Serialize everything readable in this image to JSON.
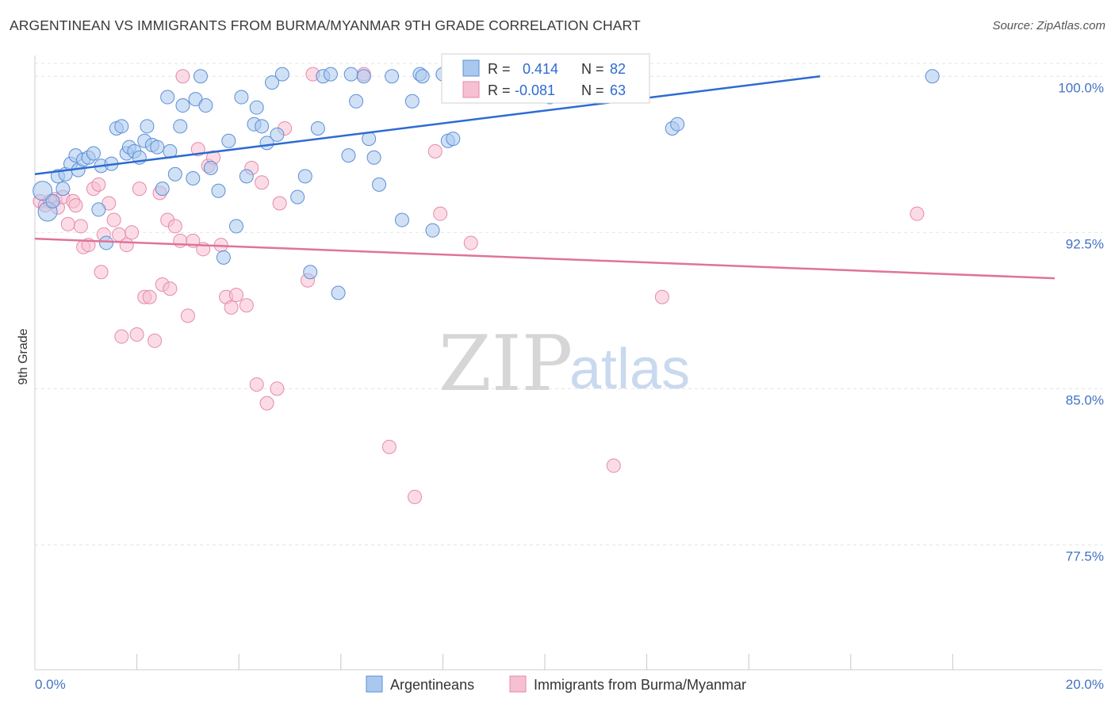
{
  "title": "ARGENTINEAN VS IMMIGRANTS FROM BURMA/MYANMAR 9TH GRADE CORRELATION CHART",
  "source": "Source: ZipAtlas.com",
  "watermark": {
    "zip": "ZIP",
    "atlas": "atlas"
  },
  "colors": {
    "blue_fill": "#a9c8ef",
    "blue_stroke": "#5b8fd6",
    "blue_line": "#2e6bd1",
    "pink_fill": "#f7bfd2",
    "pink_stroke": "#e68aa9",
    "pink_line": "#e0739a",
    "grid": "#e3e3e3",
    "axis_text": "#4472c4"
  },
  "legend": {
    "rows": [
      {
        "r_label": "R = ",
        "r_value": "0.414",
        "n_label": "N = ",
        "n_value": "82"
      },
      {
        "r_label": "R = ",
        "r_value": "-0.081",
        "n_label": "N = ",
        "n_value": "63"
      }
    ]
  },
  "bottom_legend": [
    "Argentineans",
    "Immigrants from Burma/Myanmar"
  ],
  "chart_data": {
    "type": "scatter",
    "title": "ARGENTINEAN VS IMMIGRANTS FROM BURMA/MYANMAR 9TH GRADE CORRELATION CHART",
    "xlabel": "",
    "ylabel": "9th Grade",
    "xlim": [
      0,
      20
    ],
    "ylim": [
      71.5,
      101.0
    ],
    "x_tick_labels": [
      "0.0%",
      "20.0%"
    ],
    "y_ticks": [
      77.5,
      85.0,
      92.5,
      100.0
    ],
    "y_tick_labels": [
      "77.5%",
      "85.0%",
      "92.5%",
      "100.0%"
    ],
    "grid": true,
    "legend_position": "top-center",
    "series": [
      {
        "name": "Argentineans",
        "color": "#a9c8ef",
        "trend": {
          "x": [
            0,
            15.4
          ],
          "y": [
            95.3,
            100.0
          ]
        },
        "points": [
          [
            0.15,
            94.5
          ],
          [
            0.25,
            93.5
          ],
          [
            0.35,
            94.0
          ],
          [
            0.45,
            95.2
          ],
          [
            0.55,
            94.6
          ],
          [
            0.6,
            95.3
          ],
          [
            0.7,
            95.8
          ],
          [
            0.8,
            96.2
          ],
          [
            0.85,
            95.5
          ],
          [
            0.95,
            96.0
          ],
          [
            1.05,
            96.1
          ],
          [
            1.15,
            96.3
          ],
          [
            1.25,
            93.6
          ],
          [
            1.3,
            95.7
          ],
          [
            1.4,
            92.0
          ],
          [
            1.5,
            95.8
          ],
          [
            1.6,
            97.5
          ],
          [
            1.7,
            97.6
          ],
          [
            1.8,
            96.3
          ],
          [
            1.85,
            96.6
          ],
          [
            1.95,
            96.4
          ],
          [
            2.05,
            96.1
          ],
          [
            2.15,
            96.9
          ],
          [
            2.2,
            97.6
          ],
          [
            2.3,
            96.7
          ],
          [
            2.4,
            96.6
          ],
          [
            2.5,
            94.6
          ],
          [
            2.6,
            99.0
          ],
          [
            2.65,
            96.4
          ],
          [
            2.75,
            95.3
          ],
          [
            2.85,
            97.6
          ],
          [
            2.9,
            98.6
          ],
          [
            3.1,
            95.1
          ],
          [
            3.15,
            98.9
          ],
          [
            3.25,
            100.0
          ],
          [
            3.35,
            98.6
          ],
          [
            3.45,
            95.6
          ],
          [
            3.6,
            94.5
          ],
          [
            3.7,
            91.3
          ],
          [
            3.8,
            96.9
          ],
          [
            3.95,
            92.8
          ],
          [
            4.05,
            99.0
          ],
          [
            4.15,
            95.2
          ],
          [
            4.3,
            97.7
          ],
          [
            4.35,
            98.5
          ],
          [
            4.45,
            97.6
          ],
          [
            4.55,
            96.8
          ],
          [
            4.65,
            99.7
          ],
          [
            4.75,
            97.2
          ],
          [
            4.85,
            100.1
          ],
          [
            5.15,
            94.2
          ],
          [
            5.3,
            95.2
          ],
          [
            5.4,
            90.6
          ],
          [
            5.55,
            97.5
          ],
          [
            5.65,
            100.0
          ],
          [
            5.8,
            100.1
          ],
          [
            5.95,
            89.6
          ],
          [
            6.15,
            96.2
          ],
          [
            6.2,
            100.1
          ],
          [
            6.3,
            98.8
          ],
          [
            6.45,
            100.0
          ],
          [
            6.55,
            97.0
          ],
          [
            6.65,
            96.1
          ],
          [
            6.75,
            94.8
          ],
          [
            7.0,
            100.0
          ],
          [
            7.2,
            93.1
          ],
          [
            7.4,
            98.8
          ],
          [
            7.55,
            100.1
          ],
          [
            7.6,
            100.0
          ],
          [
            7.8,
            92.6
          ],
          [
            8.0,
            100.1
          ],
          [
            8.1,
            96.9
          ],
          [
            8.2,
            97.0
          ],
          [
            8.35,
            100.1
          ],
          [
            8.75,
            100.0
          ],
          [
            9.15,
            100.0
          ],
          [
            9.7,
            100.1
          ],
          [
            10.1,
            99.0
          ],
          [
            10.45,
            99.7
          ],
          [
            12.5,
            97.5
          ],
          [
            12.6,
            97.7
          ],
          [
            17.6,
            100.0
          ]
        ]
      },
      {
        "name": "Immigrants from Burma/Myanmar",
        "color": "#f7bfd2",
        "trend": {
          "x": [
            0,
            20
          ],
          "y": [
            92.2,
            90.3
          ]
        },
        "points": [
          [
            0.1,
            94.0
          ],
          [
            0.2,
            93.8
          ],
          [
            0.3,
            94.0
          ],
          [
            0.4,
            94.1
          ],
          [
            0.45,
            93.7
          ],
          [
            0.55,
            94.2
          ],
          [
            0.65,
            92.9
          ],
          [
            0.75,
            94.0
          ],
          [
            0.8,
            93.8
          ],
          [
            0.9,
            92.8
          ],
          [
            0.95,
            91.8
          ],
          [
            1.05,
            91.9
          ],
          [
            1.15,
            94.6
          ],
          [
            1.25,
            94.8
          ],
          [
            1.3,
            90.6
          ],
          [
            1.35,
            92.4
          ],
          [
            1.45,
            93.9
          ],
          [
            1.55,
            93.1
          ],
          [
            1.65,
            92.4
          ],
          [
            1.7,
            87.5
          ],
          [
            1.8,
            91.9
          ],
          [
            1.9,
            92.5
          ],
          [
            2.0,
            87.6
          ],
          [
            2.05,
            94.6
          ],
          [
            2.15,
            89.4
          ],
          [
            2.25,
            89.4
          ],
          [
            2.35,
            87.3
          ],
          [
            2.45,
            94.4
          ],
          [
            2.5,
            90.0
          ],
          [
            2.6,
            93.1
          ],
          [
            2.65,
            89.8
          ],
          [
            2.75,
            92.8
          ],
          [
            2.85,
            92.1
          ],
          [
            2.9,
            100.0
          ],
          [
            3.0,
            88.5
          ],
          [
            3.1,
            92.1
          ],
          [
            3.2,
            96.5
          ],
          [
            3.3,
            91.7
          ],
          [
            3.4,
            95.7
          ],
          [
            3.5,
            96.1
          ],
          [
            3.65,
            91.9
          ],
          [
            3.75,
            89.4
          ],
          [
            3.85,
            88.9
          ],
          [
            3.95,
            89.5
          ],
          [
            4.15,
            89.0
          ],
          [
            4.25,
            95.6
          ],
          [
            4.35,
            85.2
          ],
          [
            4.45,
            94.9
          ],
          [
            4.55,
            84.3
          ],
          [
            4.75,
            85.0
          ],
          [
            4.8,
            93.9
          ],
          [
            4.9,
            97.5
          ],
          [
            5.35,
            90.2
          ],
          [
            5.45,
            100.1
          ],
          [
            6.45,
            100.1
          ],
          [
            6.95,
            82.2
          ],
          [
            7.45,
            79.8
          ],
          [
            7.85,
            96.4
          ],
          [
            7.95,
            93.4
          ],
          [
            8.55,
            92.0
          ],
          [
            11.35,
            81.3
          ],
          [
            12.3,
            89.4
          ],
          [
            17.3,
            93.4
          ]
        ]
      }
    ]
  }
}
